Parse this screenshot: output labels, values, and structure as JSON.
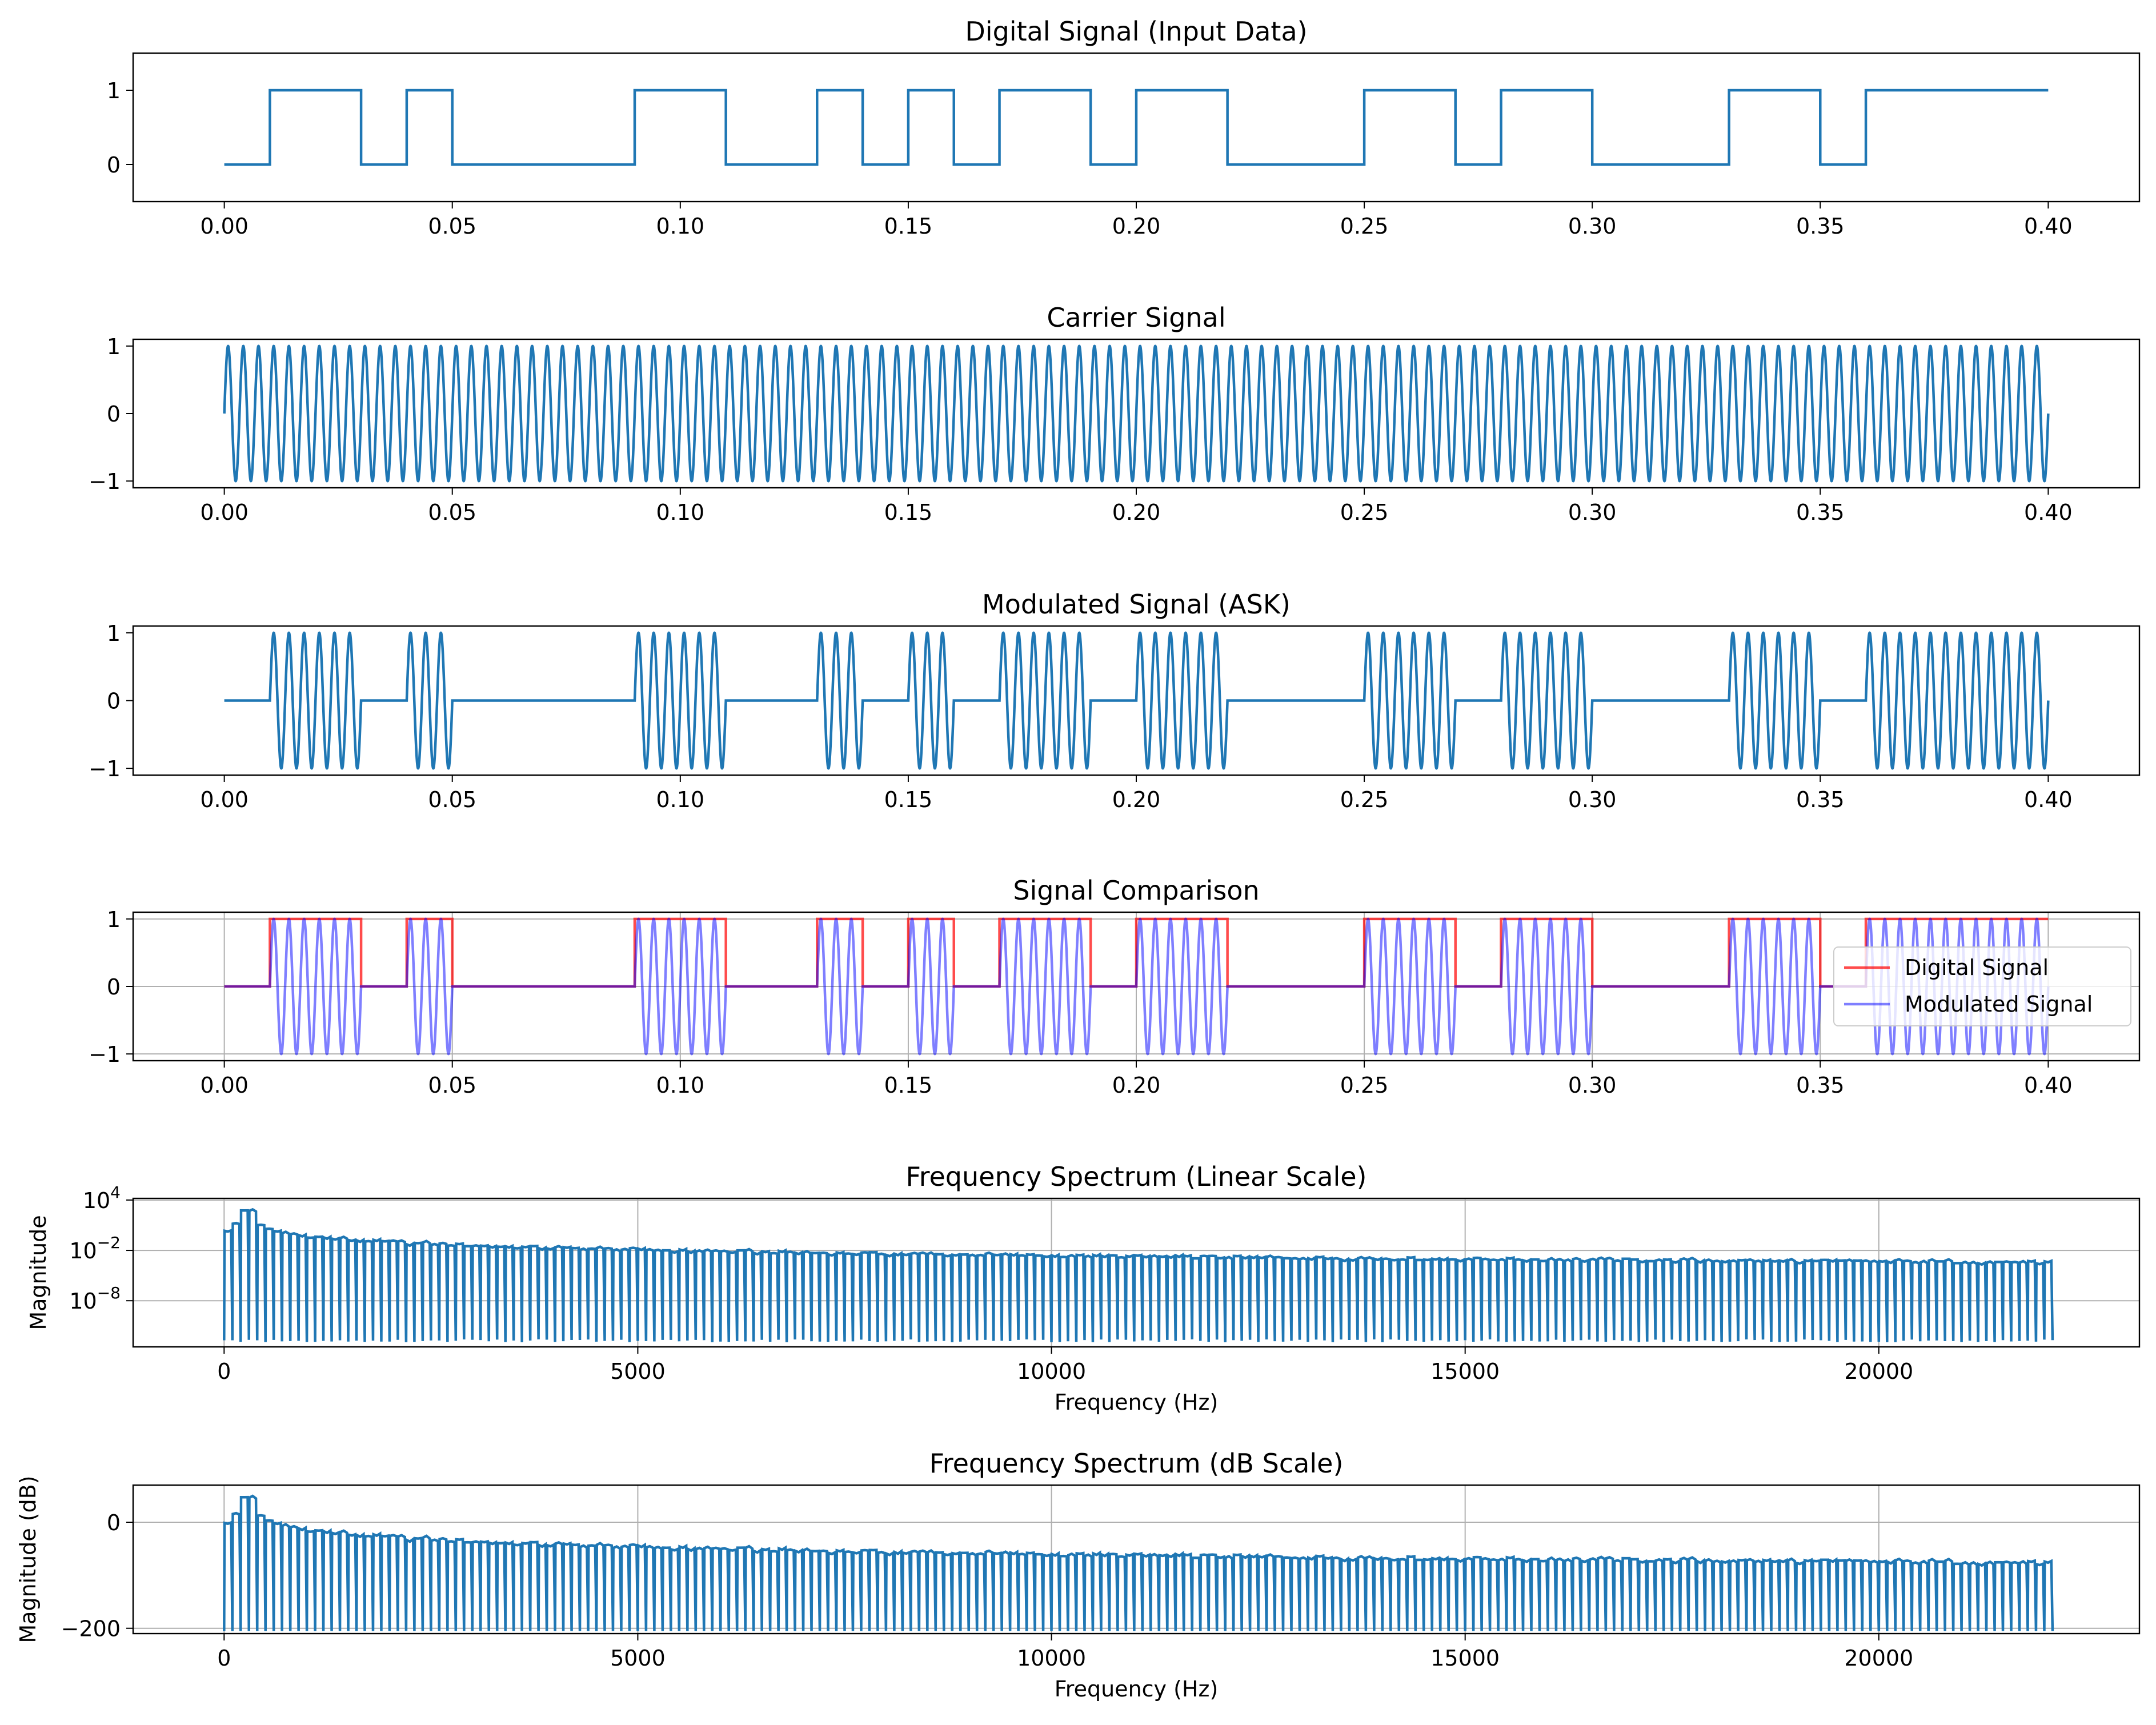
{
  "chart_data": [
    {
      "type": "line",
      "title": "Digital Signal (Input Data)",
      "xlabel": "",
      "ylabel": "",
      "xlim": [
        -0.02,
        0.42
      ],
      "ylim": [
        -0.5,
        1.5
      ],
      "grid": false,
      "xticks": [
        "0.00",
        "0.05",
        "0.10",
        "0.15",
        "0.20",
        "0.25",
        "0.30",
        "0.35",
        "0.40"
      ],
      "yticks": [
        "0",
        "1"
      ],
      "bit_duration": 0.01,
      "bits": [
        0,
        1,
        1,
        0,
        1,
        0,
        0,
        0,
        0,
        1,
        1,
        0,
        0,
        1,
        0,
        1,
        0,
        1,
        1,
        0,
        1,
        1,
        0,
        0,
        0,
        1,
        1,
        0,
        1,
        1,
        0,
        0,
        0,
        1,
        1,
        0,
        1,
        1,
        1,
        1
      ],
      "series": [
        {
          "color": "#1f77b4"
        }
      ]
    },
    {
      "type": "line",
      "title": "Carrier Signal",
      "xlabel": "",
      "ylabel": "",
      "xlim": [
        -0.02,
        0.42
      ],
      "ylim": [
        -1.1,
        1.1
      ],
      "grid": false,
      "xticks": [
        "0.00",
        "0.05",
        "0.10",
        "0.15",
        "0.20",
        "0.25",
        "0.30",
        "0.35",
        "0.40"
      ],
      "yticks": [
        "−1",
        "0",
        "1"
      ],
      "carrier_frequency_hz": 300,
      "series": [
        {
          "color": "#1f77b4"
        }
      ]
    },
    {
      "type": "line",
      "title": "Modulated Signal (ASK)",
      "xlabel": "",
      "ylabel": "",
      "xlim": [
        -0.02,
        0.42
      ],
      "ylim": [
        -1.1,
        1.1
      ],
      "grid": false,
      "xticks": [
        "0.00",
        "0.05",
        "0.10",
        "0.15",
        "0.20",
        "0.25",
        "0.30",
        "0.35",
        "0.40"
      ],
      "yticks": [
        "−1",
        "0",
        "1"
      ],
      "series": [
        {
          "color": "#1f77b4"
        }
      ]
    },
    {
      "type": "line",
      "title": "Signal Comparison",
      "xlabel": "",
      "ylabel": "",
      "xlim": [
        -0.02,
        0.42
      ],
      "ylim": [
        -1.1,
        1.1
      ],
      "grid": true,
      "legend": "center-right",
      "xticks": [
        "0.00",
        "0.05",
        "0.10",
        "0.15",
        "0.20",
        "0.25",
        "0.30",
        "0.35",
        "0.40"
      ],
      "yticks": [
        "−1",
        "0",
        "1"
      ],
      "series": [
        {
          "name": "Digital Signal",
          "color": "#ff0000"
        },
        {
          "name": "Modulated Signal",
          "color": "#0000ff"
        }
      ]
    },
    {
      "type": "line",
      "title": "Frequency Spectrum (Linear Scale)",
      "xlabel": "Frequency (Hz)",
      "ylabel": "Magnitude",
      "yscale": "log",
      "xlim": [
        -1100,
        23150
      ],
      "ylim_log10": [
        -13.5,
        4.2
      ],
      "grid": true,
      "xticks": [
        "0",
        "5000",
        "10000",
        "15000",
        "20000"
      ],
      "yticks": [
        "10^4",
        "10^−2",
        "10^−8"
      ],
      "freq_max_hz": 22050,
      "peak_hz": 300,
      "series": [
        {
          "color": "#1f77b4"
        }
      ]
    },
    {
      "type": "line",
      "title": "Frequency Spectrum (dB Scale)",
      "xlabel": "Frequency (Hz)",
      "ylabel": "Magnitude (dB)",
      "xlim": [
        -1100,
        23150
      ],
      "ylim": [
        -210,
        70
      ],
      "grid": true,
      "xticks": [
        "0",
        "5000",
        "10000",
        "15000",
        "20000"
      ],
      "yticks": [
        "0",
        "−200"
      ],
      "freq_max_hz": 22050,
      "peak_hz": 300,
      "series": [
        {
          "color": "#1f77b4"
        }
      ]
    }
  ]
}
